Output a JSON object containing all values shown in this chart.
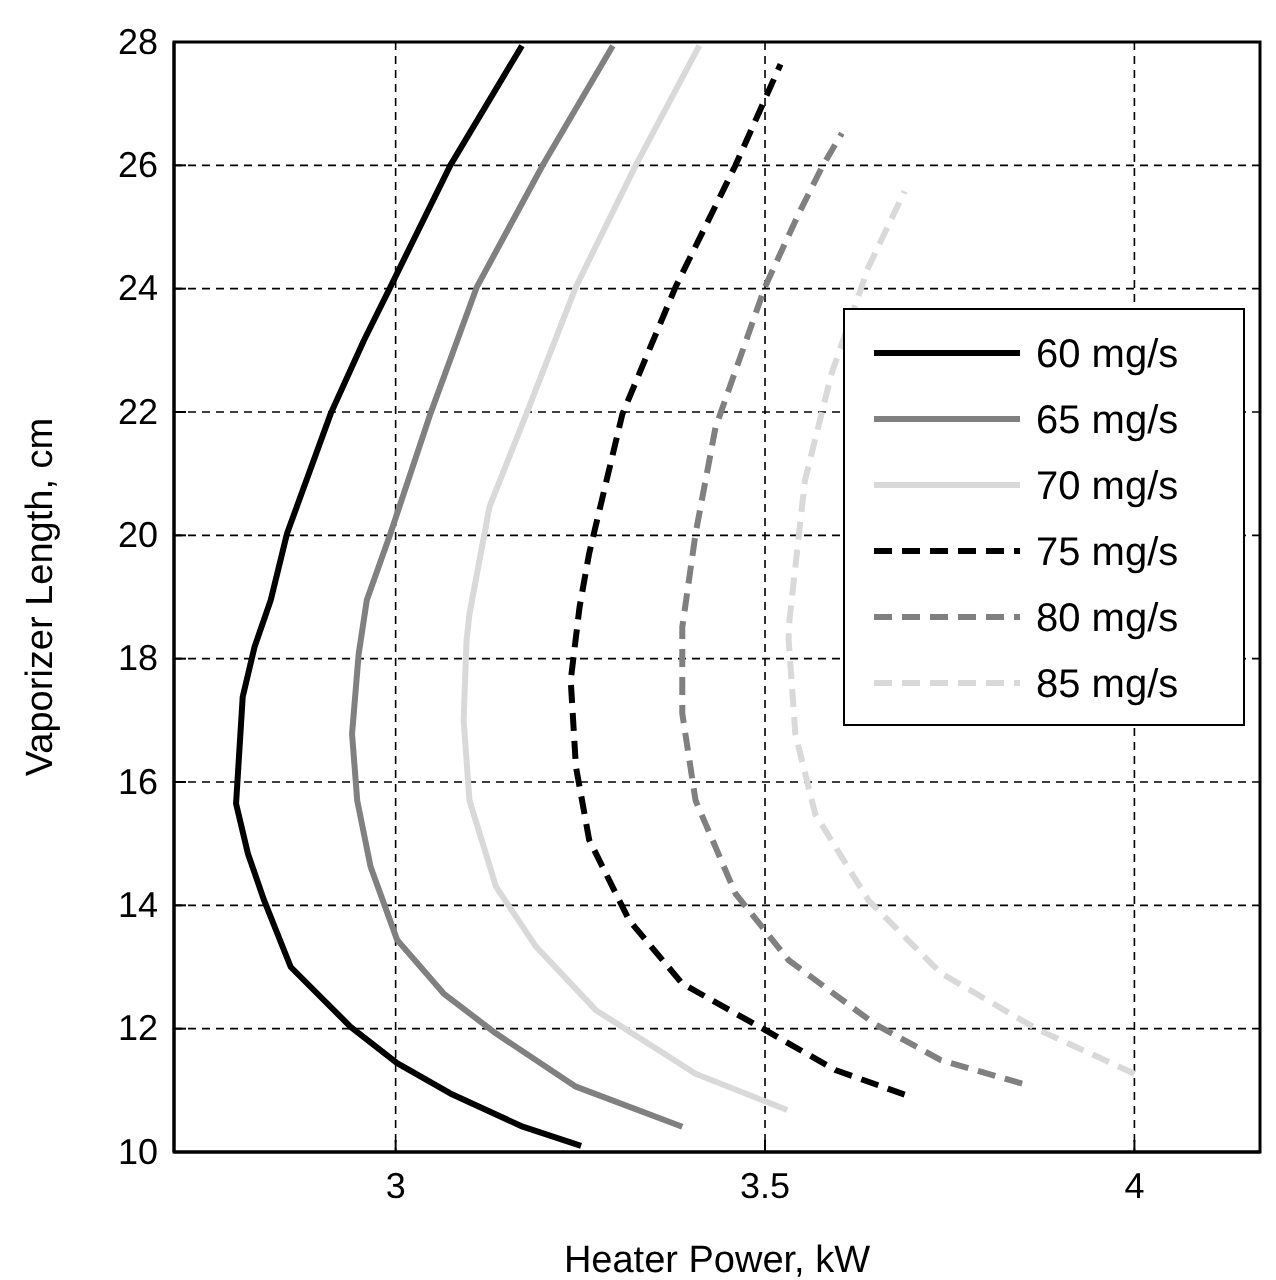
{
  "chart_data": {
    "type": "line",
    "xlabel": "Heater Power, kW",
    "ylabel": "Vaporizer Length, cm",
    "xlim": [
      2.7,
      4.17
    ],
    "ylim": [
      10,
      28
    ],
    "xticks": [
      3,
      3.5,
      4
    ],
    "yticks": [
      10,
      12,
      14,
      16,
      18,
      20,
      22,
      24,
      26,
      28
    ],
    "grid": true,
    "legend": "right",
    "marker": "none",
    "series": [
      {
        "name": "60 mg/s",
        "color": "#000000",
        "line_style": "solid",
        "x": [
          3.251,
          3.172,
          3.074,
          3.002,
          2.939,
          2.858,
          2.822,
          2.8,
          2.784,
          2.793,
          2.809,
          2.831,
          2.853,
          2.912,
          2.957,
          2.993,
          3.074,
          3.171
        ],
        "values": [
          10.1,
          10.41,
          10.95,
          11.44,
          12.03,
          13.0,
          14.08,
          14.84,
          15.65,
          17.38,
          18.19,
          18.95,
          20.03,
          21.97,
          23.16,
          24.03,
          26.0,
          27.94
        ]
      },
      {
        "name": "65 mg/s",
        "color": "#808080",
        "line_style": "solid",
        "x": [
          3.388,
          3.244,
          3.136,
          3.065,
          3.002,
          2.966,
          2.948,
          2.941,
          2.95,
          2.961,
          2.993,
          3.047,
          3.11,
          3.199,
          3.294
        ],
        "values": [
          10.41,
          11.06,
          11.92,
          12.57,
          13.44,
          14.63,
          15.7,
          16.78,
          18.08,
          18.95,
          20.03,
          21.97,
          24.03,
          26.0,
          27.94
        ]
      },
      {
        "name": "70 mg/s",
        "color": "#d9d9d9",
        "line_style": "solid",
        "x": [
          3.53,
          3.406,
          3.271,
          3.19,
          3.136,
          3.1,
          3.092,
          3.096,
          3.1,
          3.127,
          3.177,
          3.244,
          3.325,
          3.411
        ],
        "values": [
          10.68,
          11.27,
          12.3,
          13.33,
          14.3,
          15.7,
          17.0,
          18.3,
          18.73,
          20.46,
          21.97,
          24.03,
          26.0,
          27.94
        ]
      },
      {
        "name": "75 mg/s",
        "color": "#000000",
        "line_style": "dashed",
        "x": [
          3.689,
          3.595,
          3.5,
          3.388,
          3.316,
          3.262,
          3.244,
          3.237,
          3.249,
          3.262,
          3.307,
          3.379,
          3.46,
          3.521
        ],
        "values": [
          10.93,
          11.33,
          11.98,
          12.73,
          13.76,
          15.06,
          16.25,
          17.65,
          18.84,
          19.71,
          21.97,
          24.03,
          26.0,
          27.64
        ]
      },
      {
        "name": "80 mg/s",
        "color": "#808080",
        "line_style": "dashed",
        "x": [
          3.848,
          3.738,
          3.648,
          3.532,
          3.46,
          3.406,
          3.388,
          3.388,
          3.406,
          3.433,
          3.5,
          3.545,
          3.577,
          3.604
        ],
        "values": [
          11.11,
          11.49,
          12.08,
          13.11,
          14.19,
          15.7,
          17.11,
          18.51,
          20.03,
          21.75,
          24.03,
          25.2,
          25.97,
          26.52
        ]
      },
      {
        "name": "85 mg/s",
        "color": "#d9d9d9",
        "line_style": "dashed",
        "x": [
          4.0,
          3.87,
          3.738,
          3.64,
          3.568,
          3.541,
          3.532,
          3.532,
          3.554,
          3.59,
          3.64,
          3.689
        ],
        "values": [
          11.27,
          11.98,
          12.9,
          14.08,
          15.48,
          16.78,
          18.3,
          18.51,
          20.89,
          22.62,
          24.35,
          25.58
        ]
      }
    ]
  }
}
